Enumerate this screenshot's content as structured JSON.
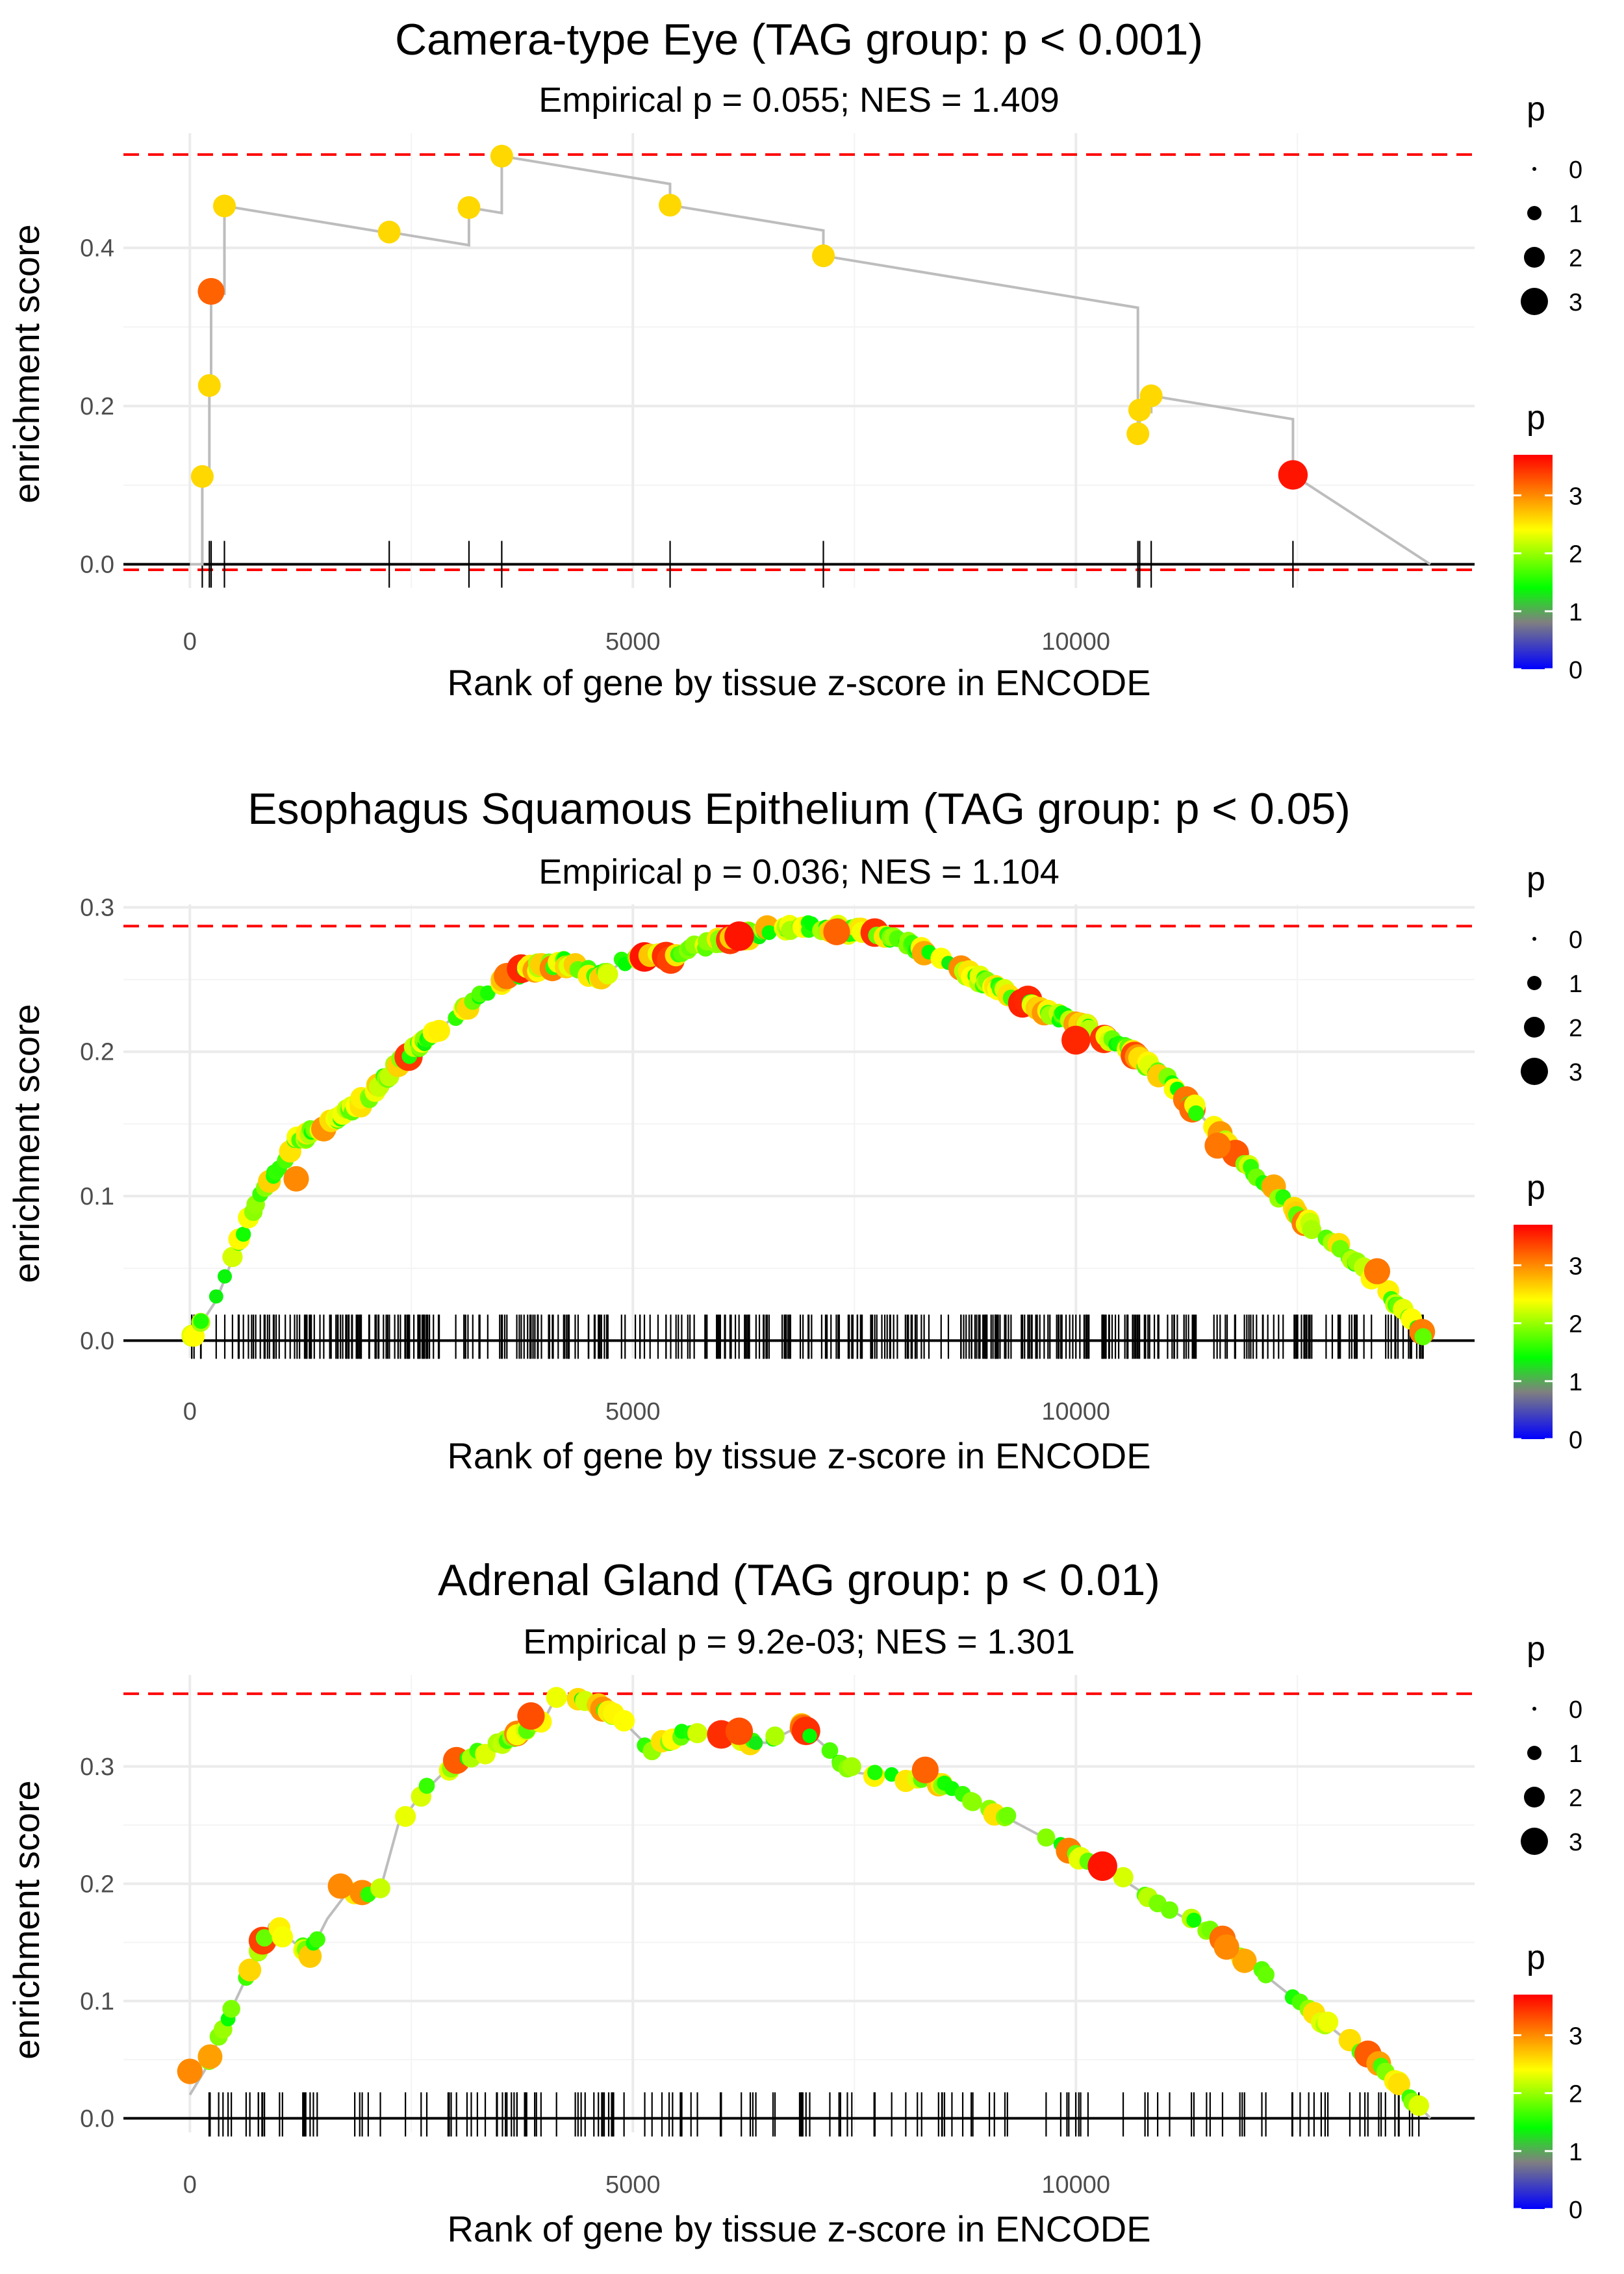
{
  "chart_data": [
    {
      "type": "line",
      "title": "Camera-type Eye (TAG group: p < 0.001)",
      "subtitle": "Empirical p = 0.055; NES = 1.409",
      "xlabel": "Rank of gene by tissue z-score in ENCODE",
      "ylabel": "enrichment score",
      "xlim": [
        -750,
        14500
      ],
      "ylim": [
        -0.03,
        0.545
      ],
      "xticks": [
        0,
        5000,
        10000
      ],
      "xtick_labels": [
        "0",
        "5000",
        "10000"
      ],
      "yticks": [
        0.0,
        0.2,
        0.4
      ],
      "ytick_labels": [
        "0.0",
        "0.2",
        "0.4"
      ],
      "max_es": 0.518,
      "min_es": -0.007,
      "curve_end": 14000,
      "hits": [
        {
          "x": 140,
          "es": 0.111,
          "p": 2.6
        },
        {
          "x": 220,
          "es": 0.226,
          "p": 2.6
        },
        {
          "x": 240,
          "es": 0.345,
          "p": 3.2
        },
        {
          "x": 390,
          "es": 0.453,
          "p": 2.6
        },
        {
          "x": 2250,
          "es": 0.42,
          "p": 2.6
        },
        {
          "x": 3150,
          "es": 0.451,
          "p": 2.6
        },
        {
          "x": 3520,
          "es": 0.516,
          "p": 2.6
        },
        {
          "x": 5420,
          "es": 0.454,
          "p": 2.6
        },
        {
          "x": 7150,
          "es": 0.39,
          "p": 2.6
        },
        {
          "x": 10700,
          "es": 0.165,
          "p": 2.6
        },
        {
          "x": 10720,
          "es": 0.195,
          "p": 2.6
        },
        {
          "x": 10850,
          "es": 0.213,
          "p": 2.6
        },
        {
          "x": 12450,
          "es": 0.113,
          "p": 3.6
        }
      ],
      "legend_size_title": "p",
      "legend_size_values": [
        "0",
        "1",
        "2",
        "3"
      ],
      "legend_color_title": "p",
      "legend_color_ticks": [
        "0",
        "1",
        "2",
        "3"
      ]
    },
    {
      "type": "line",
      "title": "Esophagus Squamous Epithelium (TAG group: p < 0.05)",
      "subtitle": "Empirical p = 0.036; NES = 1.104",
      "xlabel": "Rank of gene by tissue z-score in ENCODE",
      "ylabel": "enrichment score",
      "xlim": [
        -750,
        14500
      ],
      "ylim": [
        -0.012,
        0.302
      ],
      "xticks": [
        0,
        5000,
        10000
      ],
      "xtick_labels": [
        "0",
        "5000",
        "10000"
      ],
      "yticks": [
        0.0,
        0.1,
        0.2,
        0.3
      ],
      "ytick_labels": [
        "0.0",
        "0.1",
        "0.2",
        "0.3"
      ],
      "max_es": 0.287,
      "min_es": 0.0,
      "curve_end": 14000,
      "n_hits": 420,
      "curve_points": [
        [
          0,
          0.0
        ],
        [
          300,
          0.028
        ],
        [
          600,
          0.075
        ],
        [
          900,
          0.112
        ],
        [
          1200,
          0.138
        ],
        [
          1600,
          0.152
        ],
        [
          2000,
          0.168
        ],
        [
          2400,
          0.195
        ],
        [
          2800,
          0.215
        ],
        [
          3200,
          0.235
        ],
        [
          3600,
          0.252
        ],
        [
          4000,
          0.26
        ],
        [
          4300,
          0.262
        ],
        [
          4600,
          0.252
        ],
        [
          4900,
          0.262
        ],
        [
          5400,
          0.266
        ],
        [
          6000,
          0.277
        ],
        [
          6500,
          0.283
        ],
        [
          7000,
          0.287
        ],
        [
          7700,
          0.282
        ],
        [
          8200,
          0.272
        ],
        [
          8800,
          0.253
        ],
        [
          9400,
          0.235
        ],
        [
          10000,
          0.22
        ],
        [
          10500,
          0.205
        ],
        [
          11000,
          0.182
        ],
        [
          11500,
          0.15
        ],
        [
          12000,
          0.118
        ],
        [
          12500,
          0.088
        ],
        [
          13000,
          0.063
        ],
        [
          13400,
          0.042
        ],
        [
          13700,
          0.02
        ],
        [
          14000,
          0.0
        ]
      ],
      "highlight_hits": [
        {
          "x": 6200,
          "es": 0.28,
          "p": 3.6
        },
        {
          "x": 7300,
          "es": 0.283,
          "p": 3.2
        },
        {
          "x": 10000,
          "es": 0.208,
          "p": 3.5
        },
        {
          "x": 1200,
          "es": 0.112,
          "p": 3.0
        },
        {
          "x": 11600,
          "es": 0.135,
          "p": 3.1
        },
        {
          "x": 13400,
          "es": 0.048,
          "p": 3.1
        }
      ],
      "legend_size_title": "p",
      "legend_size_values": [
        "0",
        "1",
        "2",
        "3"
      ],
      "legend_color_title": "p",
      "legend_color_ticks": [
        "0",
        "1",
        "2",
        "3"
      ]
    },
    {
      "type": "line",
      "title": "Adrenal Gland (TAG group: p < 0.01)",
      "subtitle": "Empirical p = 9.2e-03; NES = 1.301",
      "xlabel": "Rank of gene by tissue z-score in ENCODE",
      "ylabel": "enrichment score",
      "xlim": [
        -750,
        14500
      ],
      "ylim": [
        -0.012,
        0.378
      ],
      "xticks": [
        0,
        5000,
        10000
      ],
      "xtick_labels": [
        "0",
        "5000",
        "10000"
      ],
      "yticks": [
        0.0,
        0.1,
        0.2,
        0.3
      ],
      "ytick_labels": [
        "0.0",
        "0.1",
        "0.2",
        "0.3"
      ],
      "max_es": 0.362,
      "min_es": 0.0,
      "curve_end": 14000,
      "n_hits": 160,
      "curve_points": [
        [
          0,
          0.02
        ],
        [
          200,
          0.045
        ],
        [
          450,
          0.09
        ],
        [
          700,
          0.13
        ],
        [
          900,
          0.165
        ],
        [
          1000,
          0.16
        ],
        [
          1350,
          0.14
        ],
        [
          1550,
          0.17
        ],
        [
          1750,
          0.19
        ],
        [
          2150,
          0.195
        ],
        [
          2350,
          0.25
        ],
        [
          2600,
          0.275
        ],
        [
          3000,
          0.305
        ],
        [
          3400,
          0.315
        ],
        [
          3800,
          0.33
        ],
        [
          4000,
          0.34
        ],
        [
          4150,
          0.362
        ],
        [
          4500,
          0.355
        ],
        [
          4800,
          0.345
        ],
        [
          5200,
          0.315
        ],
        [
          5600,
          0.33
        ],
        [
          6100,
          0.325
        ],
        [
          6500,
          0.32
        ],
        [
          6900,
          0.335
        ],
        [
          7500,
          0.295
        ],
        [
          8000,
          0.29
        ],
        [
          8500,
          0.285
        ],
        [
          9000,
          0.265
        ],
        [
          9500,
          0.245
        ],
        [
          10000,
          0.225
        ],
        [
          10500,
          0.205
        ],
        [
          11000,
          0.18
        ],
        [
          11500,
          0.16
        ],
        [
          12000,
          0.13
        ],
        [
          12500,
          0.1
        ],
        [
          13000,
          0.07
        ],
        [
          13500,
          0.04
        ],
        [
          14000,
          0.0
        ]
      ],
      "highlight_hits": [
        {
          "x": 3850,
          "es": 0.343,
          "p": 3.3
        },
        {
          "x": 6200,
          "es": 0.33,
          "p": 3.3
        },
        {
          "x": 8300,
          "es": 0.297,
          "p": 3.2
        },
        {
          "x": 10300,
          "es": 0.215,
          "p": 3.6
        },
        {
          "x": 11700,
          "es": 0.146,
          "p": 3.0
        },
        {
          "x": 1700,
          "es": 0.198,
          "p": 3.0
        },
        {
          "x": 0,
          "es": 0.04,
          "p": 3.0
        }
      ],
      "legend_size_title": "p",
      "legend_size_values": [
        "0",
        "1",
        "2",
        "3"
      ],
      "legend_color_title": "p",
      "legend_color_ticks": [
        "0",
        "1",
        "2",
        "3"
      ]
    }
  ],
  "colors": {
    "background": "#ffffff",
    "grid": "#ebebeb",
    "curve": "#bdbdbd",
    "hline": "#000000",
    "dashed": "#ff0000",
    "rug": "#000000",
    "gradient": [
      "#0000ff",
      "#808080",
      "#00ff00",
      "#ffff00",
      "#ff0000"
    ]
  }
}
